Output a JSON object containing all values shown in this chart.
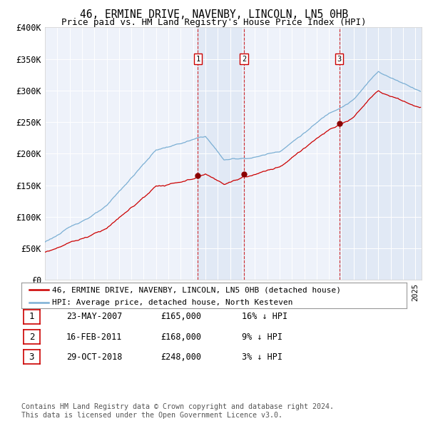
{
  "title": "46, ERMINE DRIVE, NAVENBY, LINCOLN, LN5 0HB",
  "subtitle": "Price paid vs. HM Land Registry's House Price Index (HPI)",
  "ylim": [
    0,
    400000
  ],
  "yticks": [
    0,
    50000,
    100000,
    150000,
    200000,
    250000,
    300000,
    350000,
    400000
  ],
  "ytick_labels": [
    "£0",
    "£50K",
    "£100K",
    "£150K",
    "£200K",
    "£250K",
    "£300K",
    "£350K",
    "£400K"
  ],
  "background_color": "#ffffff",
  "plot_bg_color": "#eef2fa",
  "grid_color": "#ffffff",
  "hpi_color": "#7bafd4",
  "price_color": "#cc0000",
  "legend_entries": [
    "46, ERMINE DRIVE, NAVENBY, LINCOLN, LN5 0HB (detached house)",
    "HPI: Average price, detached house, North Kesteven"
  ],
  "table_rows": [
    [
      "1",
      "23-MAY-2007",
      "£165,000",
      "16% ↓ HPI"
    ],
    [
      "2",
      "16-FEB-2011",
      "£168,000",
      "9% ↓ HPI"
    ],
    [
      "3",
      "29-OCT-2018",
      "£248,000",
      "3% ↓ HPI"
    ]
  ],
  "footnote": "Contains HM Land Registry data © Crown copyright and database right 2024.\nThis data is licensed under the Open Government Licence v3.0.",
  "sale_times": [
    2007.39,
    2011.12,
    2018.83
  ],
  "sale_prices": [
    165000,
    168000,
    248000
  ],
  "xlim_start": 1995,
  "xlim_end": 2025.5
}
